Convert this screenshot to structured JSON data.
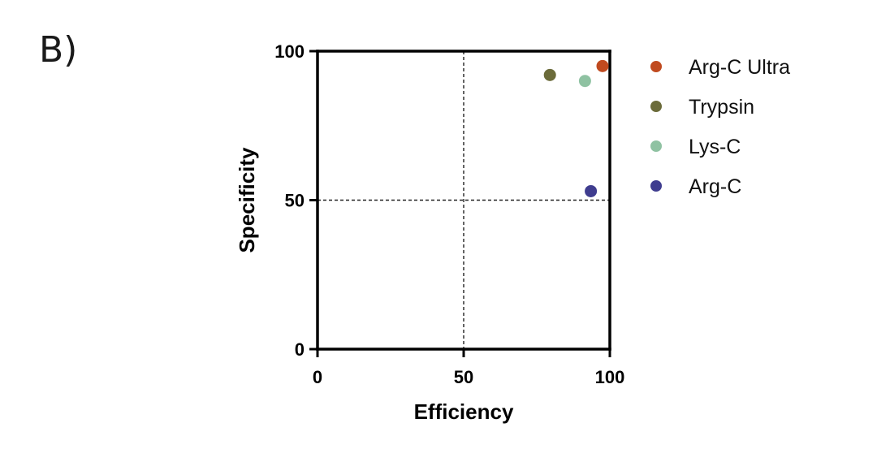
{
  "panel_label": "B)",
  "chart_data": {
    "type": "scatter",
    "title": "",
    "xlabel": "Efficiency",
    "ylabel": "Specificity",
    "xlim": [
      0,
      100
    ],
    "ylim": [
      0,
      100
    ],
    "x_ticks": [
      0,
      50,
      100
    ],
    "y_ticks": [
      0,
      50,
      100
    ],
    "reference_lines": {
      "x": 50,
      "y": 50,
      "style": "dashed"
    },
    "grid": false,
    "legend_position": "right",
    "series": [
      {
        "name": "Arg-C Ultra",
        "color": "#c04a1f",
        "points": [
          {
            "x": 97.5,
            "y": 95
          }
        ]
      },
      {
        "name": "Trypsin",
        "color": "#6b6b3a",
        "points": [
          {
            "x": 79.5,
            "y": 92
          }
        ]
      },
      {
        "name": "Lys-C",
        "color": "#8fc2a2",
        "points": [
          {
            "x": 91.5,
            "y": 90
          }
        ]
      },
      {
        "name": "Arg-C",
        "color": "#3f3d8f",
        "points": [
          {
            "x": 93.5,
            "y": 53
          }
        ]
      }
    ]
  }
}
